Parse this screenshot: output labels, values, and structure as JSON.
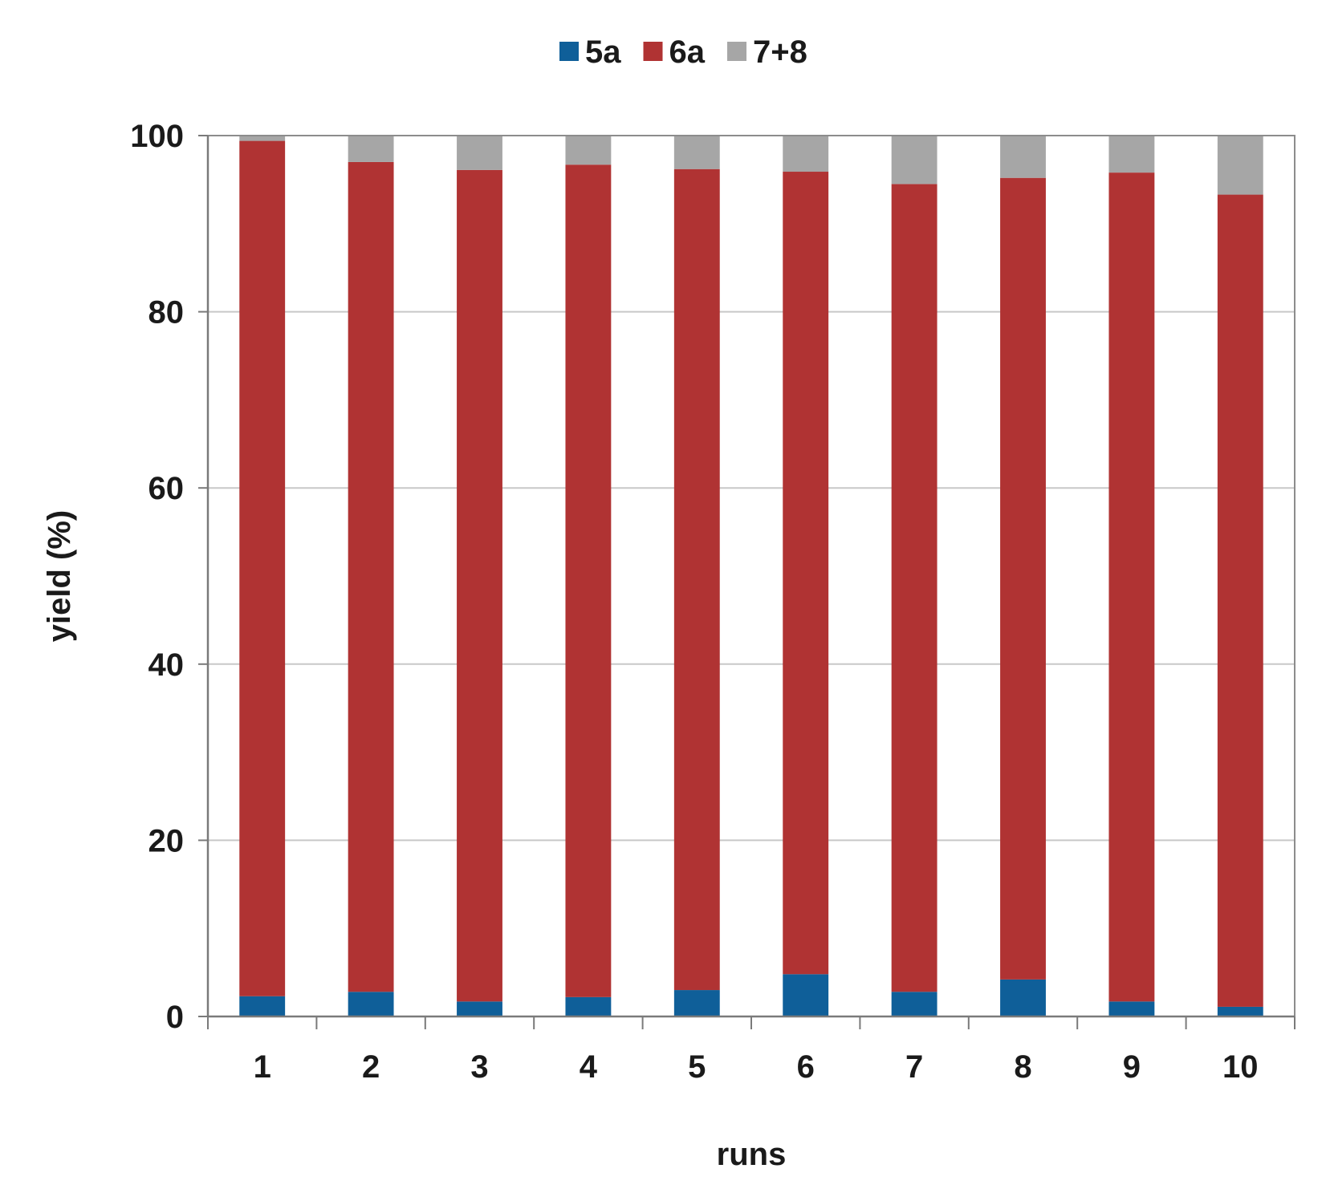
{
  "chart_data": {
    "type": "bar",
    "stacked": true,
    "title": "",
    "xlabel": "runs",
    "ylabel": "yield (%)",
    "categories": [
      "1",
      "2",
      "3",
      "4",
      "5",
      "6",
      "7",
      "8",
      "9",
      "10"
    ],
    "ylim": [
      0,
      100
    ],
    "yticks": [
      "0",
      "20",
      "40",
      "60",
      "80",
      "100"
    ],
    "grid": true,
    "legend_position": "top",
    "series": [
      {
        "name": "5a",
        "color": "#0f5f99",
        "values": [
          2.3,
          2.8,
          1.7,
          2.2,
          3.0,
          4.8,
          2.8,
          4.2,
          1.7,
          1.1
        ]
      },
      {
        "name": "6a",
        "color": "#b03333",
        "values": [
          97.1,
          94.2,
          94.4,
          94.5,
          93.2,
          91.1,
          91.7,
          91.0,
          94.1,
          92.2
        ]
      },
      {
        "name": "7+8",
        "color": "#a6a6a6",
        "values": [
          0.6,
          3.0,
          3.9,
          3.3,
          3.8,
          4.1,
          5.5,
          4.8,
          4.2,
          6.7
        ]
      }
    ]
  }
}
